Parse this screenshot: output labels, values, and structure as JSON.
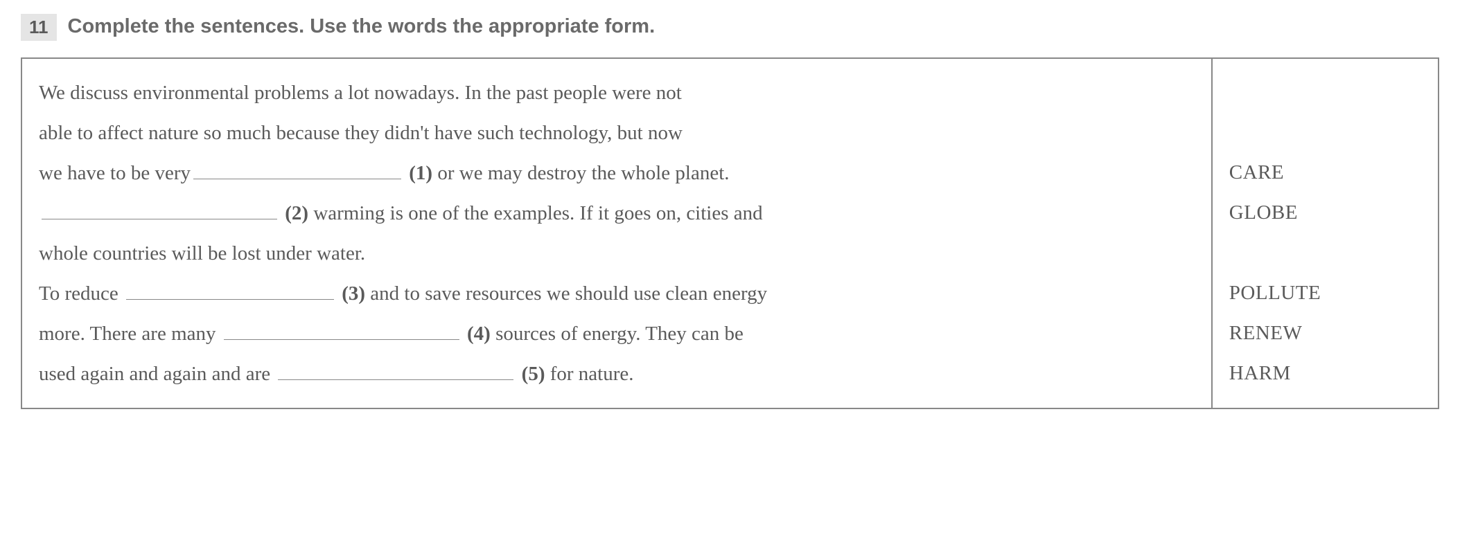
{
  "exercise": {
    "number": "11",
    "instruction": "Complete the sentences. Use the words the appropriate form."
  },
  "passage": {
    "line1_part1": "We discuss environmental problems a lot nowadays. In the past people were not",
    "line2_part1": "able to affect nature so much because they didn't have such technology, but now",
    "line3_part1": "we have to be very",
    "blank1_label": "(1)",
    "line3_part2": " or we may destroy the whole planet.",
    "blank2_label": "(2)",
    "line4_part2": " warming is one of the examples. If it goes on, cities and",
    "line5_part1": "whole countries will be lost under water.",
    "line6_part1": "To reduce ",
    "blank3_label": "(3)",
    "line6_part2": " and to save resources we should use clean energy",
    "line7_part1": "more. There are many ",
    "blank4_label": "(4)",
    "line7_part2": " sources of energy. They can be",
    "line8_part1": "used again and again and are ",
    "blank5_label": "(5)",
    "line8_part2": " for nature."
  },
  "words": {
    "word1": "CARE",
    "word2": "GLOBE",
    "word3": "POLLUTE",
    "word4": "RENEW",
    "word5": "HARM"
  },
  "styling": {
    "background_color": "#ffffff",
    "border_color": "#888888",
    "text_color": "#5a5a5a",
    "number_bg_color": "#e5e5e5",
    "instruction_color": "#6a6a6a",
    "body_fontsize": 29,
    "instruction_fontsize": 29,
    "number_fontsize": 26
  }
}
